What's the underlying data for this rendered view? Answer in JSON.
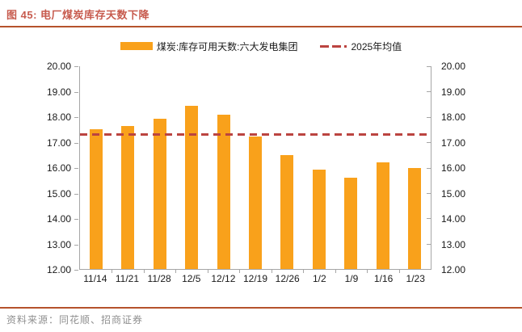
{
  "figure": {
    "title": "图 45: 电厂煤炭库存天数下降",
    "source": "资料来源：同花顺、招商证券"
  },
  "legend": {
    "bar_label": "煤炭:库存可用天数:六大发电集团",
    "line_label": "2025年均值"
  },
  "chart_data": {
    "type": "bar",
    "title": "电厂煤炭库存天数下降",
    "categories": [
      "11/14",
      "11/21",
      "11/28",
      "12/5",
      "12/12",
      "12/19",
      "12/26",
      "1/2",
      "1/9",
      "1/16",
      "1/23"
    ],
    "series": [
      {
        "name": "煤炭:库存可用天数:六大发电集团",
        "values": [
          17.5,
          17.65,
          17.93,
          18.45,
          18.1,
          17.22,
          16.5,
          15.93,
          15.6,
          16.2,
          16.0
        ]
      }
    ],
    "mean_line": {
      "name": "2025年均值",
      "value": 17.32,
      "style": "dashed"
    },
    "ylim": [
      12,
      20
    ],
    "ytick_step": 1,
    "ytick_labels": [
      "20.00",
      "19.00",
      "18.00",
      "17.00",
      "16.00",
      "15.00",
      "14.00",
      "13.00",
      "12.00"
    ],
    "dual_y_axis": true,
    "grid": false,
    "legend_position": "top",
    "xlabel": "",
    "ylabel": ""
  },
  "colors": {
    "bar": "#F9A11B",
    "mean_line": "#BB4440",
    "title_text": "#C75B4E",
    "divider": "#B5532C",
    "axis": "#A6A6A6",
    "axis_text": "#1A1A1A",
    "source_text": "#8F8F8F"
  }
}
